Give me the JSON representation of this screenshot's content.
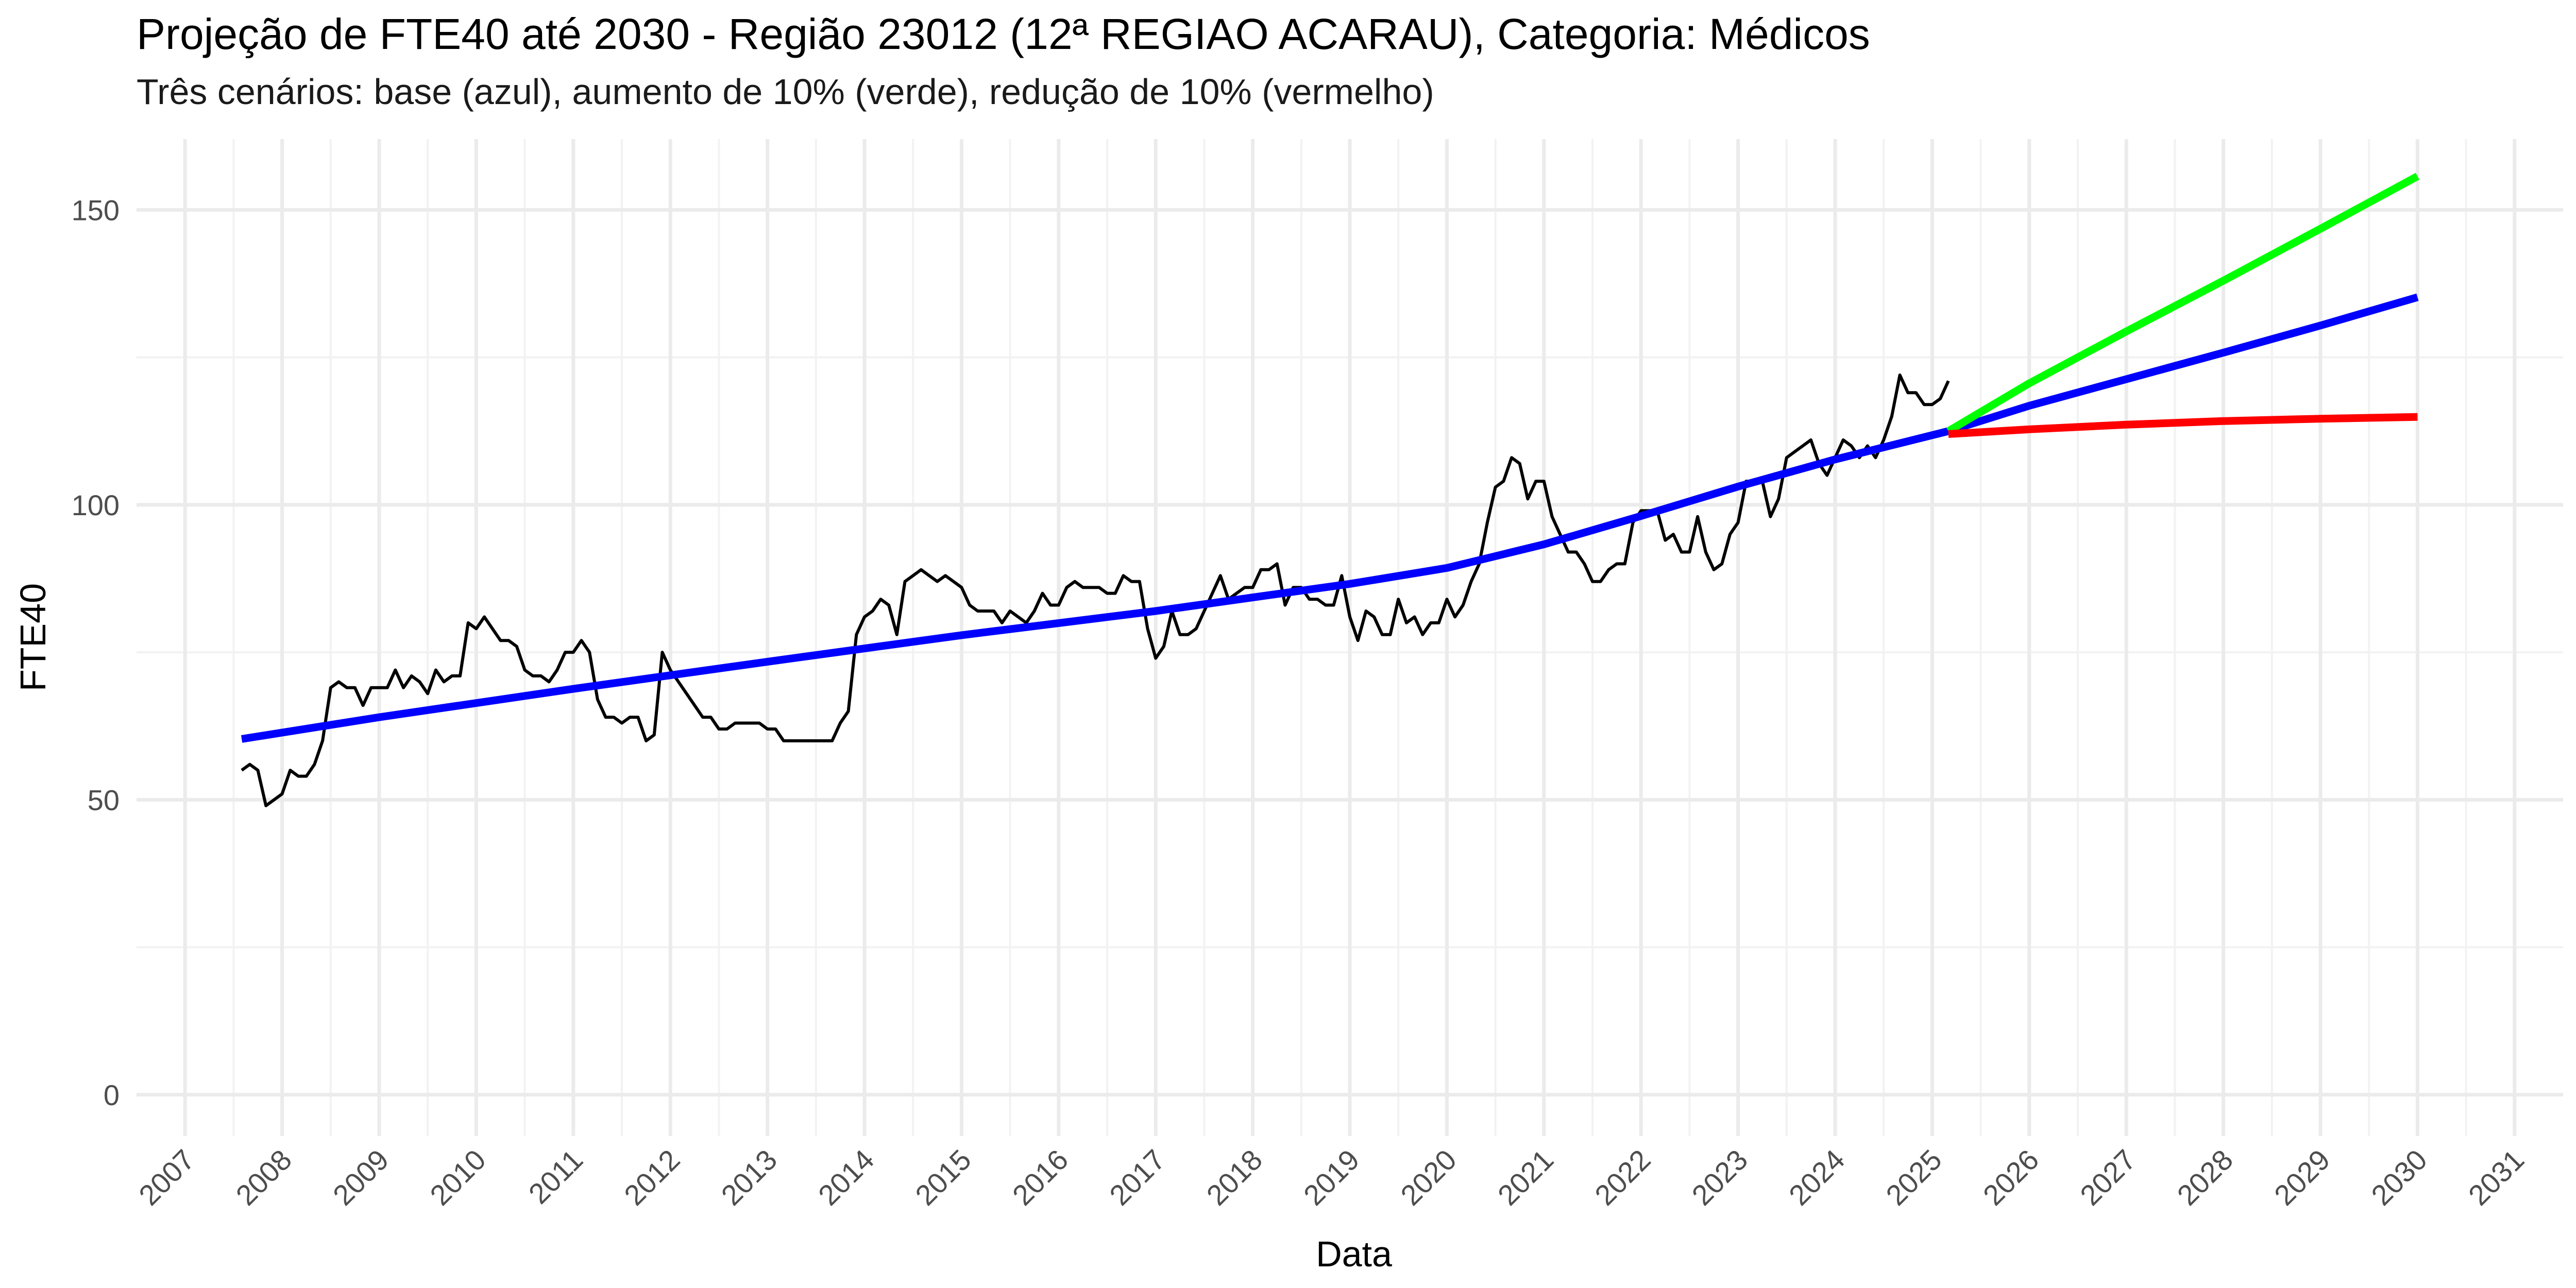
{
  "chart_data": {
    "type": "line",
    "title": "Projeção de FTE40 até 2030 - Região 23012 (12ª REGIAO ACARAU), Categoria: Médicos",
    "subtitle": "Três cenários: base (azul), aumento de 10% (verde), redução de 10% (vermelho)",
    "xlabel": "Data",
    "ylabel": "FTE40",
    "x_range": [
      "2006-07-01",
      "2031-07-01"
    ],
    "ylim": [
      -7,
      162
    ],
    "y_ticks": [
      0,
      50,
      100,
      150
    ],
    "x_ticks": [
      "2007",
      "2008",
      "2009",
      "2010",
      "2011",
      "2012",
      "2013",
      "2014",
      "2015",
      "2016",
      "2017",
      "2018",
      "2019",
      "2020",
      "2021",
      "2022",
      "2023",
      "2024",
      "2025",
      "2026",
      "2027",
      "2028",
      "2029",
      "2030",
      "2031"
    ],
    "grid": true,
    "legend": "none",
    "series": [
      {
        "color": "#000000",
        "points": [
          [
            "2007-08",
            55
          ],
          [
            "2007-09",
            56
          ],
          [
            "2007-10",
            55
          ],
          [
            "2007-11",
            49
          ],
          [
            "2007-12",
            50
          ],
          [
            "2008-01",
            51
          ],
          [
            "2008-02",
            55
          ],
          [
            "2008-03",
            54
          ],
          [
            "2008-04",
            54
          ],
          [
            "2008-05",
            56
          ],
          [
            "2008-06",
            60
          ],
          [
            "2008-07",
            69
          ],
          [
            "2008-08",
            70
          ],
          [
            "2008-09",
            69
          ],
          [
            "2008-10",
            69
          ],
          [
            "2008-11",
            66
          ],
          [
            "2008-12",
            69
          ],
          [
            "2009-01",
            69
          ],
          [
            "2009-02",
            69
          ],
          [
            "2009-03",
            72
          ],
          [
            "2009-04",
            69
          ],
          [
            "2009-05",
            71
          ],
          [
            "2009-06",
            70
          ],
          [
            "2009-07",
            68
          ],
          [
            "2009-08",
            72
          ],
          [
            "2009-09",
            70
          ],
          [
            "2009-10",
            71
          ],
          [
            "2009-11",
            71
          ],
          [
            "2009-12",
            80
          ],
          [
            "2010-01",
            79
          ],
          [
            "2010-02",
            81
          ],
          [
            "2010-03",
            79
          ],
          [
            "2010-04",
            77
          ],
          [
            "2010-05",
            77
          ],
          [
            "2010-06",
            76
          ],
          [
            "2010-07",
            72
          ],
          [
            "2010-08",
            71
          ],
          [
            "2010-09",
            71
          ],
          [
            "2010-10",
            70
          ],
          [
            "2010-11",
            72
          ],
          [
            "2010-12",
            75
          ],
          [
            "2011-01",
            75
          ],
          [
            "2011-02",
            77
          ],
          [
            "2011-03",
            75
          ],
          [
            "2011-04",
            67
          ],
          [
            "2011-05",
            64
          ],
          [
            "2011-06",
            64
          ],
          [
            "2011-07",
            63
          ],
          [
            "2011-08",
            64
          ],
          [
            "2011-09",
            64
          ],
          [
            "2011-10",
            60
          ],
          [
            "2011-11",
            61
          ],
          [
            "2011-12",
            75
          ],
          [
            "2012-01",
            72
          ],
          [
            "2012-02",
            70
          ],
          [
            "2012-03",
            68
          ],
          [
            "2012-04",
            66
          ],
          [
            "2012-05",
            64
          ],
          [
            "2012-06",
            64
          ],
          [
            "2012-07",
            62
          ],
          [
            "2012-08",
            62
          ],
          [
            "2012-09",
            63
          ],
          [
            "2012-10",
            63
          ],
          [
            "2012-11",
            63
          ],
          [
            "2012-12",
            63
          ],
          [
            "2013-01",
            62
          ],
          [
            "2013-02",
            62
          ],
          [
            "2013-03",
            60
          ],
          [
            "2013-04",
            60
          ],
          [
            "2013-05",
            60
          ],
          [
            "2013-06",
            60
          ],
          [
            "2013-07",
            60
          ],
          [
            "2013-08",
            60
          ],
          [
            "2013-09",
            60
          ],
          [
            "2013-10",
            63
          ],
          [
            "2013-11",
            65
          ],
          [
            "2013-12",
            78
          ],
          [
            "2014-01",
            81
          ],
          [
            "2014-02",
            82
          ],
          [
            "2014-03",
            84
          ],
          [
            "2014-04",
            83
          ],
          [
            "2014-05",
            78
          ],
          [
            "2014-06",
            87
          ],
          [
            "2014-07",
            88
          ],
          [
            "2014-08",
            89
          ],
          [
            "2014-09",
            88
          ],
          [
            "2014-10",
            87
          ],
          [
            "2014-11",
            88
          ],
          [
            "2014-12",
            87
          ],
          [
            "2015-01",
            86
          ],
          [
            "2015-02",
            83
          ],
          [
            "2015-03",
            82
          ],
          [
            "2015-04",
            82
          ],
          [
            "2015-05",
            82
          ],
          [
            "2015-06",
            80
          ],
          [
            "2015-07",
            82
          ],
          [
            "2015-08",
            81
          ],
          [
            "2015-09",
            80
          ],
          [
            "2015-10",
            82
          ],
          [
            "2015-11",
            85
          ],
          [
            "2015-12",
            83
          ],
          [
            "2016-01",
            83
          ],
          [
            "2016-02",
            86
          ],
          [
            "2016-03",
            87
          ],
          [
            "2016-04",
            86
          ],
          [
            "2016-05",
            86
          ],
          [
            "2016-06",
            86
          ],
          [
            "2016-07",
            85
          ],
          [
            "2016-08",
            85
          ],
          [
            "2016-09",
            88
          ],
          [
            "2016-10",
            87
          ],
          [
            "2016-11",
            87
          ],
          [
            "2016-12",
            79
          ],
          [
            "2017-01",
            74
          ],
          [
            "2017-02",
            76
          ],
          [
            "2017-03",
            82
          ],
          [
            "2017-04",
            78
          ],
          [
            "2017-05",
            78
          ],
          [
            "2017-06",
            79
          ],
          [
            "2017-07",
            82
          ],
          [
            "2017-08",
            85
          ],
          [
            "2017-09",
            88
          ],
          [
            "2017-10",
            84
          ],
          [
            "2017-11",
            85
          ],
          [
            "2017-12",
            86
          ],
          [
            "2018-01",
            86
          ],
          [
            "2018-02",
            89
          ],
          [
            "2018-03",
            89
          ],
          [
            "2018-04",
            90
          ],
          [
            "2018-05",
            83
          ],
          [
            "2018-06",
            86
          ],
          [
            "2018-07",
            86
          ],
          [
            "2018-08",
            84
          ],
          [
            "2018-09",
            84
          ],
          [
            "2018-10",
            83
          ],
          [
            "2018-11",
            83
          ],
          [
            "2018-12",
            88
          ],
          [
            "2019-01",
            81
          ],
          [
            "2019-02",
            77
          ],
          [
            "2019-03",
            82
          ],
          [
            "2019-04",
            81
          ],
          [
            "2019-05",
            78
          ],
          [
            "2019-06",
            78
          ],
          [
            "2019-07",
            84
          ],
          [
            "2019-08",
            80
          ],
          [
            "2019-09",
            81
          ],
          [
            "2019-10",
            78
          ],
          [
            "2019-11",
            80
          ],
          [
            "2019-12",
            80
          ],
          [
            "2020-01",
            84
          ],
          [
            "2020-02",
            81
          ],
          [
            "2020-03",
            83
          ],
          [
            "2020-04",
            87
          ],
          [
            "2020-05",
            90
          ],
          [
            "2020-06",
            97
          ],
          [
            "2020-07",
            103
          ],
          [
            "2020-08",
            104
          ],
          [
            "2020-09",
            108
          ],
          [
            "2020-10",
            107
          ],
          [
            "2020-11",
            101
          ],
          [
            "2020-12",
            104
          ],
          [
            "2021-01",
            104
          ],
          [
            "2021-02",
            98
          ],
          [
            "2021-03",
            95
          ],
          [
            "2021-04",
            92
          ],
          [
            "2021-05",
            92
          ],
          [
            "2021-06",
            90
          ],
          [
            "2021-07",
            87
          ],
          [
            "2021-08",
            87
          ],
          [
            "2021-09",
            89
          ],
          [
            "2021-10",
            90
          ],
          [
            "2021-11",
            90
          ],
          [
            "2021-12",
            97
          ],
          [
            "2022-01",
            99
          ],
          [
            "2022-02",
            99
          ],
          [
            "2022-03",
            99
          ],
          [
            "2022-04",
            94
          ],
          [
            "2022-05",
            95
          ],
          [
            "2022-06",
            92
          ],
          [
            "2022-07",
            92
          ],
          [
            "2022-08",
            98
          ],
          [
            "2022-09",
            92
          ],
          [
            "2022-10",
            89
          ],
          [
            "2022-11",
            90
          ],
          [
            "2022-12",
            95
          ],
          [
            "2023-01",
            97
          ],
          [
            "2023-02",
            104
          ],
          [
            "2023-03",
            104
          ],
          [
            "2023-04",
            104
          ],
          [
            "2023-05",
            98
          ],
          [
            "2023-06",
            101
          ],
          [
            "2023-07",
            108
          ],
          [
            "2023-08",
            109
          ],
          [
            "2023-09",
            110
          ],
          [
            "2023-10",
            111
          ],
          [
            "2023-11",
            107
          ],
          [
            "2023-12",
            105
          ],
          [
            "2024-01",
            108
          ],
          [
            "2024-02",
            111
          ],
          [
            "2024-03",
            110
          ],
          [
            "2024-04",
            108
          ],
          [
            "2024-05",
            110
          ],
          [
            "2024-06",
            108
          ],
          [
            "2024-07",
            111
          ],
          [
            "2024-08",
            115
          ],
          [
            "2024-09",
            122
          ],
          [
            "2024-10",
            119
          ],
          [
            "2024-11",
            119
          ],
          [
            "2024-12",
            117
          ],
          [
            "2025-01",
            117
          ],
          [
            "2025-02",
            118
          ],
          [
            "2025-03",
            121
          ]
        ]
      },
      {
        "color": "#0000ff",
        "points": [
          [
            "2007-08",
            60.3
          ],
          [
            "2009-01",
            64.0
          ],
          [
            "2011-01",
            68.8
          ],
          [
            "2013-01",
            73.4
          ],
          [
            "2015-01",
            77.9
          ],
          [
            "2017-01",
            82.0
          ],
          [
            "2018-01",
            84.3
          ],
          [
            "2019-01",
            86.6
          ],
          [
            "2020-01",
            89.3
          ],
          [
            "2021-01",
            93.3
          ],
          [
            "2022-01",
            98.1
          ],
          [
            "2023-01",
            103.1
          ],
          [
            "2024-01",
            107.7
          ],
          [
            "2025-03",
            112.5
          ],
          [
            "2026-01",
            116.8
          ],
          [
            "2027-01",
            121.3
          ],
          [
            "2028-01",
            125.8
          ],
          [
            "2029-01",
            130.4
          ],
          [
            "2030-01",
            135.2
          ]
        ]
      },
      {
        "color": "#00ff00",
        "points": [
          [
            "2025-03",
            112.5
          ],
          [
            "2026-01",
            120.6
          ],
          [
            "2027-01",
            129.4
          ],
          [
            "2028-01",
            138.0
          ],
          [
            "2029-01",
            146.8
          ],
          [
            "2030-01",
            155.7
          ]
        ]
      },
      {
        "color": "#ff0000",
        "points": [
          [
            "2025-03",
            112.0
          ],
          [
            "2026-01",
            112.8
          ],
          [
            "2027-01",
            113.6
          ],
          [
            "2028-01",
            114.2
          ],
          [
            "2029-01",
            114.6
          ],
          [
            "2030-01",
            114.9
          ]
        ]
      }
    ]
  }
}
